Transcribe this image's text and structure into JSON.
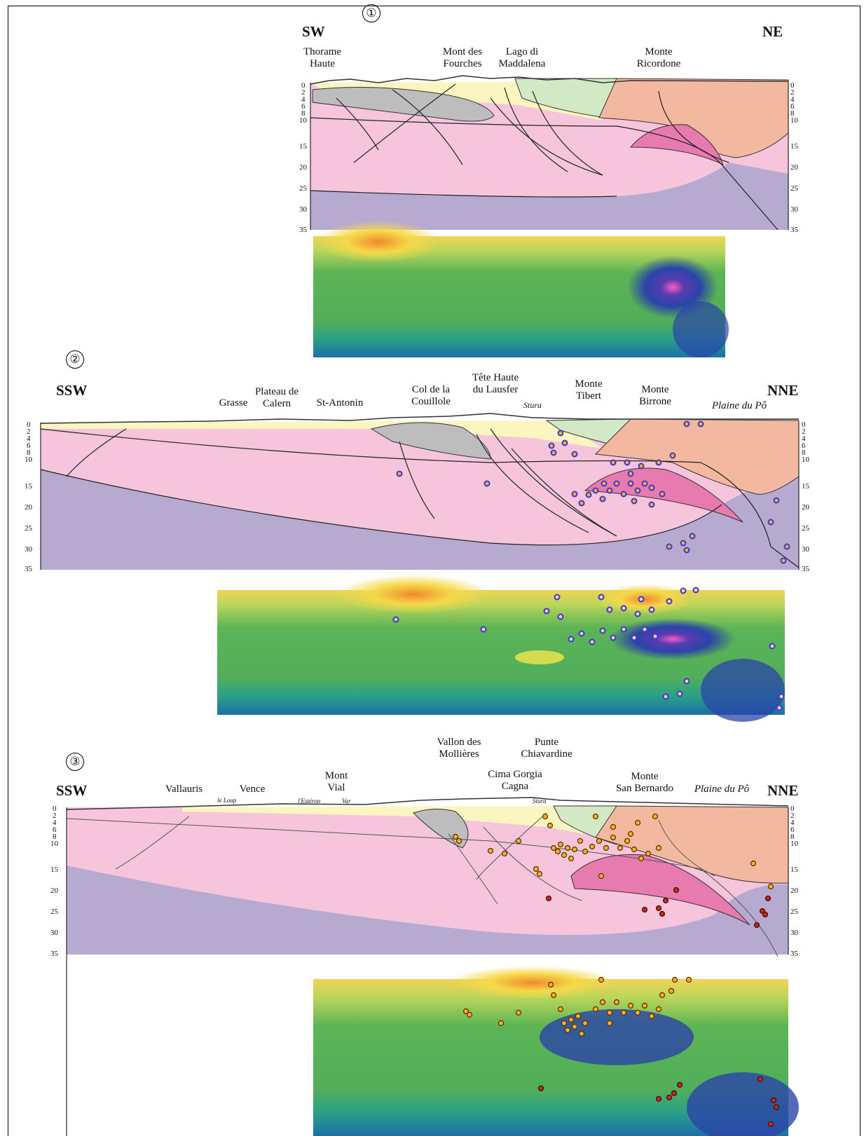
{
  "sections": [
    {
      "number": "①",
      "left_label": "SW",
      "right_label": "NE",
      "places": [
        {
          "text": "Thorame\nHaute"
        },
        {
          "text": "Mont des\nFourches"
        },
        {
          "text": "Lago di\nMaddalena"
        },
        {
          "text": "Monte\nRicordone"
        }
      ],
      "depth_ticks": [
        "0",
        "2",
        "4",
        "6",
        "8",
        "10",
        "15",
        "20",
        "25",
        "30",
        "35"
      ]
    },
    {
      "number": "②",
      "left_label": "SSW",
      "right_label": "NNE",
      "places": [
        {
          "text": "Grasse"
        },
        {
          "text": "Plateau de\nCalern"
        },
        {
          "text": "St-Antonin"
        },
        {
          "text": "Col de la\nCouillole"
        },
        {
          "text": "Tête Haute\ndu Lausfer"
        },
        {
          "text": "Stura"
        },
        {
          "text": "Monte\nTibert"
        },
        {
          "text": "Monte\nBirrone"
        },
        {
          "text": "Plaine du Pô"
        }
      ],
      "depth_ticks": [
        "0",
        "2",
        "4",
        "6",
        "8",
        "10",
        "15",
        "20",
        "25",
        "30",
        "35"
      ]
    },
    {
      "number": "③",
      "left_label": "SSW",
      "right_label": "NNE",
      "places": [
        {
          "text": "Vallauris"
        },
        {
          "text": "Vence"
        },
        {
          "text": "le Loup"
        },
        {
          "text": "Mont\nVial"
        },
        {
          "text": "l'Estéron"
        },
        {
          "text": "Var"
        },
        {
          "text": "Vallon des\nMollières"
        },
        {
          "text": "Punte\nChiavardine"
        },
        {
          "text": "Cima Gorgia\nCagna"
        },
        {
          "text": "Stura"
        },
        {
          "text": "Monte\nSan Bernardo"
        },
        {
          "text": "Plaine du Pô"
        }
      ],
      "depth_ticks": [
        "0",
        "2",
        "4",
        "6",
        "8",
        "10",
        "15",
        "20",
        "25",
        "30",
        "35"
      ]
    }
  ],
  "colors": {
    "crust_pink": "#f6c5dc",
    "mantle_lavender": "#b6aad0",
    "sediment_yellow": "#fbf5c0",
    "grey_unit": "#bdbdbd",
    "green_unit": "#d3e9c6",
    "salmon_unit": "#f3b9a0",
    "ivrea_magenta": "#e77aae",
    "tomo_green": "#4fae4f",
    "tomo_yellow": "#f5e64c",
    "tomo_blue": "#2a44a8",
    "quake_blue": "#3a36d8",
    "quake_orange": "#f5b020",
    "quake_red": "#c8261e"
  }
}
